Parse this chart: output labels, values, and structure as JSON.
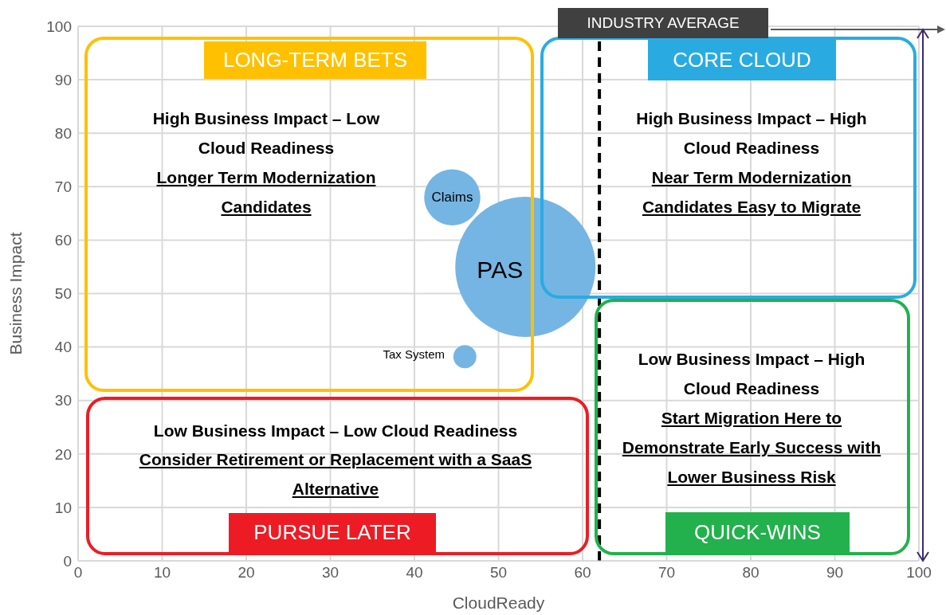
{
  "chart_data": {
    "type": "bubble",
    "xlabel": "CloudReady",
    "ylabel": "Business Impact",
    "xlim": [
      0,
      100
    ],
    "xticks": [
      0,
      10,
      20,
      30,
      40,
      50,
      60,
      70,
      80,
      90,
      100
    ],
    "ylim": [
      0,
      100
    ],
    "yticks": [
      0,
      10,
      20,
      30,
      40,
      50,
      60,
      70,
      80,
      90,
      100
    ],
    "grid": true,
    "legend": false,
    "marker": "circle",
    "series": [
      {
        "name": "Claims",
        "color": "#75b5e3",
        "x": [
          44.5
        ],
        "values": [
          68
        ],
        "sizes": [
          0.16
        ]
      },
      {
        "name": "PAS",
        "color": "#75b5e3",
        "x": [
          53.2
        ],
        "values": [
          55
        ],
        "sizes": [
          1
        ]
      },
      {
        "name": "Tax System",
        "color": "#75b5e3",
        "x": [
          46
        ],
        "values": [
          38.2
        ],
        "sizes": [
          0.027
        ]
      }
    ],
    "ref_lines": [
      {
        "axis": "x",
        "value": 62,
        "label": "INDUSTRY AVERAGE",
        "color": "#000000",
        "line_style": "dashed"
      }
    ],
    "annotations": [
      "LONG-TERM BETS",
      "High Business Impact – Low Cloud Readiness",
      "Longer Term Modernization Candidates",
      "CORE CLOUD",
      "High Business Impact – High Cloud Readiness",
      "Near Term Modernization Candidates Easy to Migrate",
      "Low Business Impact – Low Cloud Readiness",
      "Consider Retirement or Replacement with a SaaS Alternative",
      "PURSUE LATER",
      "Low Business Impact – High Cloud Readiness",
      "Start Migration Here to Demonstrate Early Success with Lower Business Risk",
      "QUICK-WINS"
    ]
  }
}
